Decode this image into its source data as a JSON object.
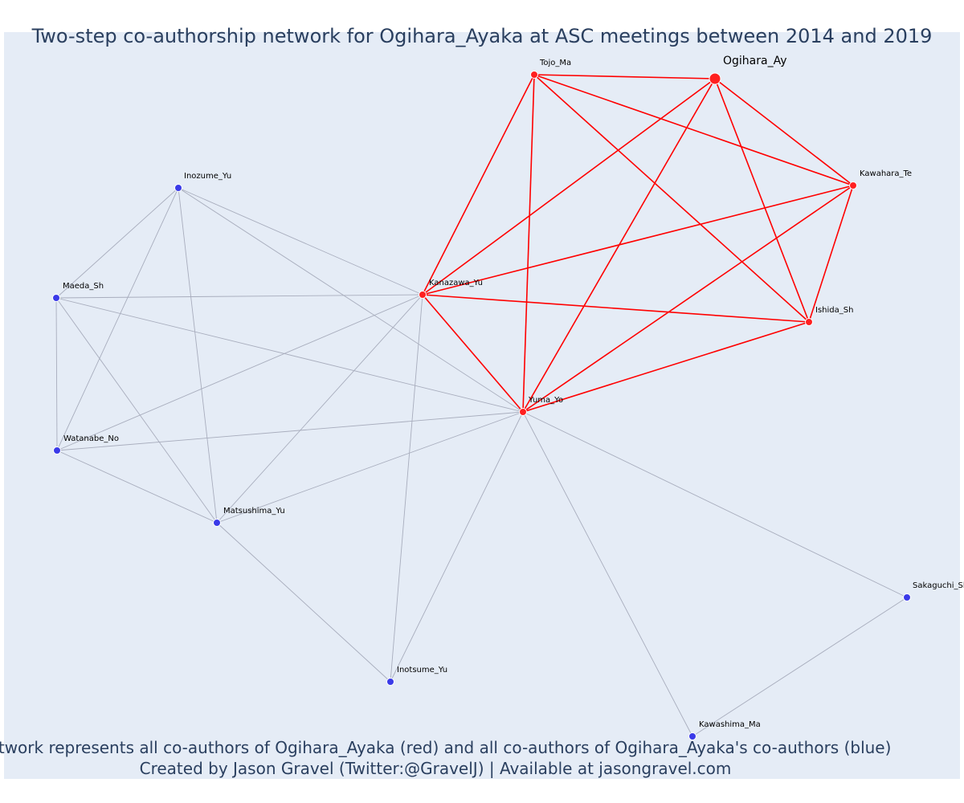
{
  "title": "Two-step co-authorship network for Ogihara_Ayaka at ASC meetings between 2014 and 2019",
  "caption_line1": "Network represents all co-authors of Ogihara_Ayaka (red) and all co-authors of Ogihara_Ayaka's co-authors (blue)",
  "caption_line2": "Created by Jason Gravel (Twitter:@GravelJ) | Available at jasongravel.com",
  "colors": {
    "background": "#e5ecf6",
    "coauthor": "#ff2020",
    "second_step": "#3a3ae8",
    "red_edge": "#ff0000",
    "gray_edge": "#a8adbd",
    "text": "#2a3f5f"
  },
  "nodes": [
    {
      "id": "Ogihara_Ay",
      "label": "Ogihara_Ay",
      "group": "focus"
    },
    {
      "id": "Tojo_Ma",
      "label": "Tojo_Ma",
      "group": "coauthor"
    },
    {
      "id": "Kawahara_Te",
      "label": "Kawahara_Te",
      "group": "coauthor"
    },
    {
      "id": "Ishida_Sh",
      "label": "Ishida_Sh",
      "group": "coauthor"
    },
    {
      "id": "Kanazawa_Yu",
      "label": "Kanazawa_Yu",
      "group": "coauthor"
    },
    {
      "id": "Yuma_Yo",
      "label": "Yuma_Yo",
      "group": "coauthor"
    },
    {
      "id": "Inozume_Yu",
      "label": "Inozume_Yu",
      "group": "second_step"
    },
    {
      "id": "Maeda_Sh",
      "label": "Maeda_Sh",
      "group": "second_step"
    },
    {
      "id": "Watanabe_No",
      "label": "Watanabe_No",
      "group": "second_step"
    },
    {
      "id": "Matsushima_Yu",
      "label": "Matsushima_Yu",
      "group": "second_step"
    },
    {
      "id": "Inotsume_Yu",
      "label": "Inotsume_Yu",
      "group": "second_step"
    },
    {
      "id": "Kawashima_Ma",
      "label": "Kawashima_Ma",
      "group": "second_step"
    },
    {
      "id": "Sakaguchi_Sh",
      "label": "Sakaguchi_Sh",
      "group": "second_step"
    }
  ],
  "edges": [
    [
      "Tojo_Ma",
      "Ogihara_Ay",
      "red"
    ],
    [
      "Tojo_Ma",
      "Kawahara_Te",
      "red"
    ],
    [
      "Tojo_Ma",
      "Ishida_Sh",
      "red"
    ],
    [
      "Tojo_Ma",
      "Kanazawa_Yu",
      "red"
    ],
    [
      "Tojo_Ma",
      "Yuma_Yo",
      "red"
    ],
    [
      "Ogihara_Ay",
      "Kawahara_Te",
      "red"
    ],
    [
      "Ogihara_Ay",
      "Ishida_Sh",
      "red"
    ],
    [
      "Ogihara_Ay",
      "Kanazawa_Yu",
      "red"
    ],
    [
      "Ogihara_Ay",
      "Yuma_Yo",
      "red"
    ],
    [
      "Kawahara_Te",
      "Ishida_Sh",
      "red"
    ],
    [
      "Kawahara_Te",
      "Kanazawa_Yu",
      "red"
    ],
    [
      "Kawahara_Te",
      "Yuma_Yo",
      "red"
    ],
    [
      "Ishida_Sh",
      "Kanazawa_Yu",
      "red"
    ],
    [
      "Ishida_Sh",
      "Yuma_Yo",
      "red"
    ],
    [
      "Kanazawa_Yu",
      "Yuma_Yo",
      "red"
    ],
    [
      "Inozume_Yu",
      "Maeda_Sh",
      "gray"
    ],
    [
      "Inozume_Yu",
      "Watanabe_No",
      "gray"
    ],
    [
      "Inozume_Yu",
      "Matsushima_Yu",
      "gray"
    ],
    [
      "Inozume_Yu",
      "Kanazawa_Yu",
      "gray"
    ],
    [
      "Inozume_Yu",
      "Yuma_Yo",
      "gray"
    ],
    [
      "Maeda_Sh",
      "Watanabe_No",
      "gray"
    ],
    [
      "Maeda_Sh",
      "Matsushima_Yu",
      "gray"
    ],
    [
      "Maeda_Sh",
      "Kanazawa_Yu",
      "gray"
    ],
    [
      "Maeda_Sh",
      "Yuma_Yo",
      "gray"
    ],
    [
      "Watanabe_No",
      "Matsushima_Yu",
      "gray"
    ],
    [
      "Watanabe_No",
      "Kanazawa_Yu",
      "gray"
    ],
    [
      "Watanabe_No",
      "Yuma_Yo",
      "gray"
    ],
    [
      "Matsushima_Yu",
      "Kanazawa_Yu",
      "gray"
    ],
    [
      "Matsushima_Yu",
      "Yuma_Yo",
      "gray"
    ],
    [
      "Matsushima_Yu",
      "Inotsume_Yu",
      "gray"
    ],
    [
      "Kanazawa_Yu",
      "Inotsume_Yu",
      "gray"
    ],
    [
      "Yuma_Yo",
      "Inotsume_Yu",
      "gray"
    ],
    [
      "Yuma_Yo",
      "Kawashima_Ma",
      "gray"
    ],
    [
      "Yuma_Yo",
      "Sakaguchi_Sh",
      "gray"
    ],
    [
      "Kawashima_Ma",
      "Sakaguchi_Sh",
      "gray"
    ]
  ]
}
